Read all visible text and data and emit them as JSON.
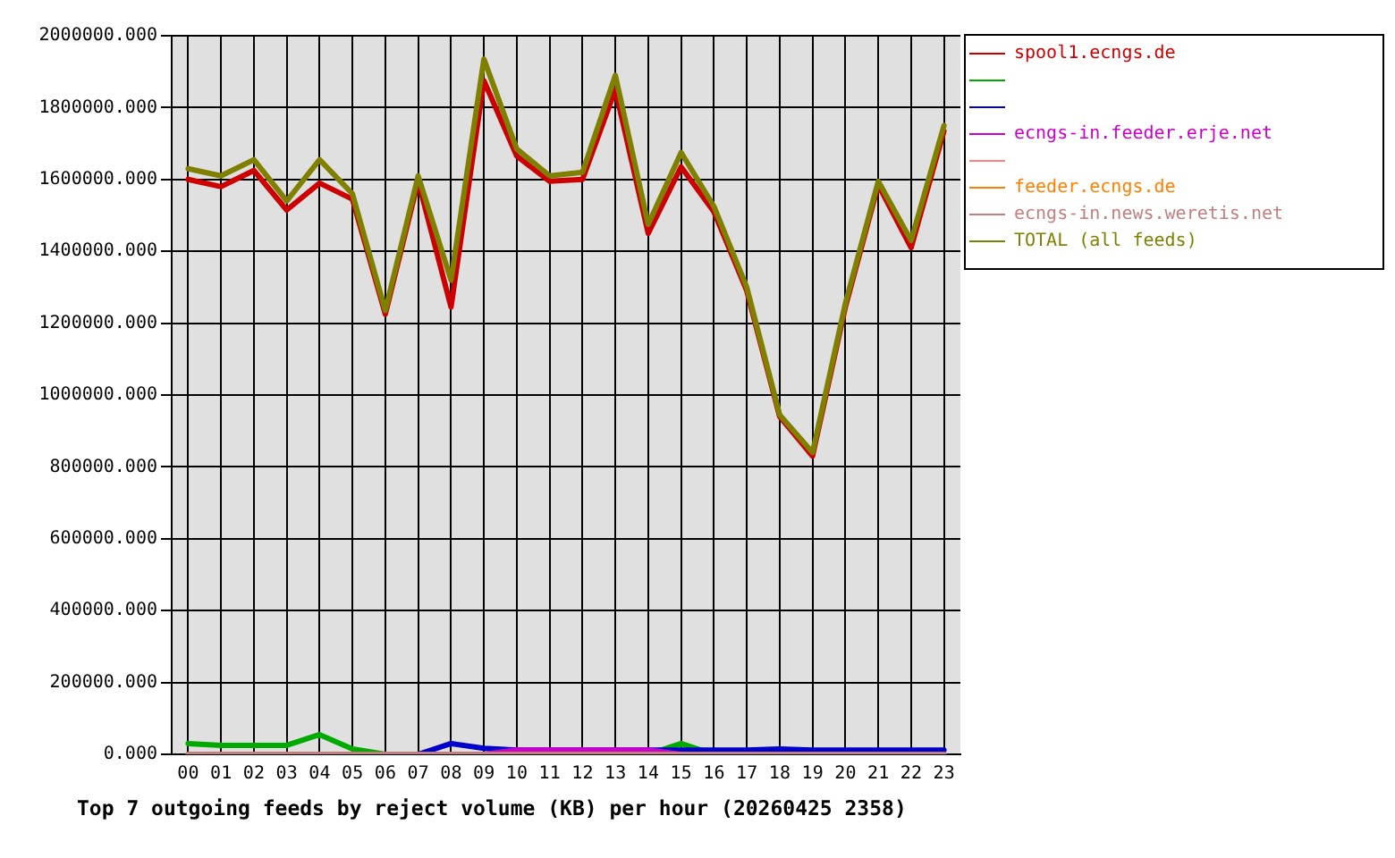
{
  "chart_data": {
    "type": "line",
    "title": "Top 7 outgoing feeds by reject volume (KB) per hour (20260425 2358)",
    "categories": [
      "00",
      "01",
      "02",
      "03",
      "04",
      "05",
      "06",
      "07",
      "08",
      "09",
      "10",
      "11",
      "12",
      "13",
      "14",
      "15",
      "16",
      "17",
      "18",
      "19",
      "20",
      "21",
      "22",
      "23"
    ],
    "series": [
      {
        "name": "spool1.ecngs.de",
        "color": "#cc0000",
        "values": [
          1600000,
          1580000,
          1625000,
          1515000,
          1590000,
          1545000,
          1225000,
          1595000,
          1245000,
          1875000,
          1665000,
          1595000,
          1600000,
          1850000,
          1450000,
          1635000,
          1510000,
          1290000,
          940000,
          830000,
          1245000,
          1585000,
          1410000,
          1735000
        ]
      },
      {
        "color": "#00aa00",
        "values": [
          30000,
          25000,
          25000,
          25000,
          55000,
          15000,
          0,
          null,
          null,
          null,
          null,
          null,
          null,
          null,
          0,
          30000,
          0,
          null,
          null,
          null,
          null,
          null,
          null,
          null
        ]
      },
      {
        "color": "#0000cc",
        "values": [
          null,
          null,
          null,
          null,
          null,
          null,
          null,
          0,
          30000,
          17000,
          12000,
          12000,
          12000,
          12000,
          12000,
          12000,
          12000,
          12000,
          15000,
          12000,
          12000,
          12000,
          12000,
          12000
        ]
      },
      {
        "name": "ecngs-in.feeder.erje.net",
        "color": "#cc00cc",
        "values": [
          null,
          null,
          null,
          null,
          null,
          null,
          null,
          null,
          null,
          0,
          12000,
          12000,
          12000,
          12000,
          12000,
          0,
          null,
          null,
          null,
          null,
          null,
          null,
          null,
          null
        ]
      },
      {
        "color": "#ff8080",
        "values": [
          null,
          null,
          null,
          null,
          null,
          null,
          null,
          null,
          null,
          null,
          null,
          null,
          null,
          null,
          null,
          null,
          null,
          null,
          null,
          null,
          null,
          null,
          null,
          null
        ]
      },
      {
        "name": "feeder.ecngs.de",
        "color": "#ff8000",
        "values": [
          null,
          null,
          null,
          null,
          null,
          null,
          null,
          null,
          null,
          null,
          null,
          null,
          null,
          null,
          null,
          null,
          null,
          null,
          null,
          null,
          null,
          null,
          null,
          null
        ]
      },
      {
        "name": "ecngs-in.news.weretis.net",
        "color": "#c08080",
        "values": [
          0,
          0,
          0,
          0,
          0,
          0,
          0,
          0,
          0,
          0,
          0,
          0,
          0,
          0,
          0,
          0,
          0,
          0,
          0,
          0,
          0,
          0,
          0,
          0
        ]
      },
      {
        "name": "TOTAL (all feeds)",
        "color": "#808000",
        "values": [
          1630000,
          1610000,
          1655000,
          1540000,
          1655000,
          1560000,
          1235000,
          1610000,
          1320000,
          1935000,
          1685000,
          1610000,
          1620000,
          1890000,
          1475000,
          1675000,
          1525000,
          1300000,
          945000,
          840000,
          1255000,
          1595000,
          1430000,
          1750000
        ]
      }
    ],
    "ylim": [
      0,
      2000000
    ],
    "yticks": [
      {
        "value": 0,
        "label": "0.000"
      },
      {
        "value": 200000,
        "label": "200000.000"
      },
      {
        "value": 400000,
        "label": "400000.000"
      },
      {
        "value": 600000,
        "label": "600000.000"
      },
      {
        "value": 800000,
        "label": "800000.000"
      },
      {
        "value": 1000000,
        "label": "1000000.000"
      },
      {
        "value": 1200000,
        "label": "1200000.000"
      },
      {
        "value": 1400000,
        "label": "1400000.000"
      },
      {
        "value": 1600000,
        "label": "1600000.000"
      },
      {
        "value": 1800000,
        "label": "1800000.000"
      },
      {
        "value": 2000000,
        "label": "2000000.000"
      }
    ],
    "grid": true,
    "legend": "top right",
    "marker": "none",
    "line_style": "solid"
  }
}
